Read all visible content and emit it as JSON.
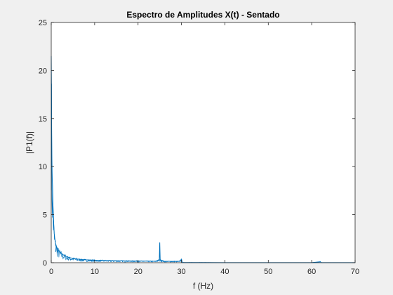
{
  "chart_data": {
    "type": "line",
    "title": "Espectro de Amplitudes X(t) - Sentado",
    "xlabel": "f (Hz)",
    "ylabel": "|P1(f)|",
    "xlim": [
      0,
      70
    ],
    "ylim": [
      0,
      25
    ],
    "xticks": [
      0,
      10,
      20,
      30,
      40,
      50,
      60,
      70
    ],
    "yticks": [
      0,
      5,
      10,
      15,
      20,
      25
    ],
    "grid": false,
    "legend": "none",
    "line_color": "#0072bd",
    "series": [
      {
        "x": [
          0,
          0.05,
          0.1,
          0.15,
          0.2,
          0.25,
          0.3,
          0.35,
          0.4,
          0.5,
          0.6,
          0.7,
          0.8,
          0.9,
          1.0,
          1.2,
          1.4,
          1.6,
          1.8,
          2.0,
          2.5,
          3.0,
          3.5,
          4.0,
          5.0,
          6.0,
          7.0,
          8.0,
          10.0,
          12.0,
          15.0,
          18.0,
          20.0,
          22.0,
          24.0,
          24.9,
          25.0,
          25.1,
          26.0,
          28.0,
          29.5,
          30.0,
          30.2,
          35.0,
          40.0,
          45.0,
          50.0,
          55.0,
          60.0,
          62.0,
          62.2,
          65.0,
          70.0
        ],
        "y": [
          21.5,
          18.5,
          14.0,
          11.0,
          9.5,
          8.5,
          8.0,
          7.0,
          6.0,
          5.0,
          3.8,
          3.0,
          2.6,
          2.3,
          2.0,
          1.7,
          1.5,
          1.3,
          1.2,
          1.1,
          0.9,
          0.75,
          0.65,
          0.55,
          0.45,
          0.38,
          0.33,
          0.3,
          0.26,
          0.23,
          0.2,
          0.18,
          0.17,
          0.16,
          0.15,
          0.3,
          2.1,
          0.3,
          0.15,
          0.14,
          0.14,
          0.35,
          0.02,
          0.02,
          0.01,
          0.01,
          0.01,
          0.01,
          0.01,
          0.1,
          0.01,
          0.01,
          0.01
        ]
      }
    ]
  }
}
